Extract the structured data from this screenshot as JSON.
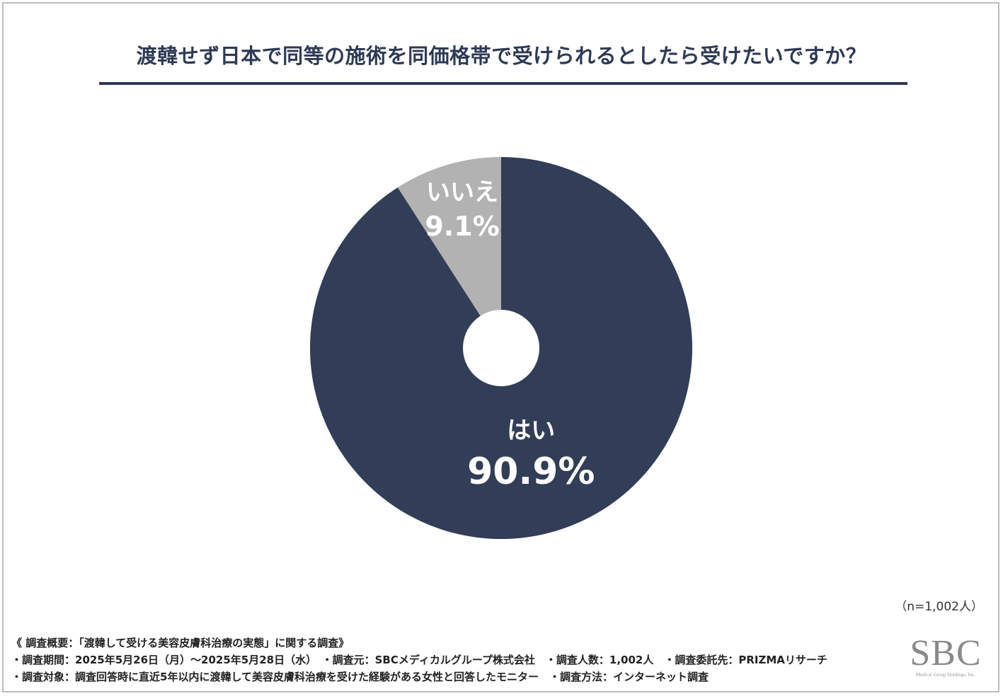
{
  "title": "渡韓せず日本で同等の施術を同価格帯で受けられるとしたら受けたいですか？",
  "sample_note": "（n=1,002人）",
  "survey": {
    "heading": "《 調査概要：「渡韓して受ける美容皮膚科治療の実態」に関する調査》",
    "line1": "・調査期間：2025年5月26日（月）～2025年5月28日（水）　・調査元：SBCメディカルグループ株式会社　・調査人数：1,002人　・調査委託先：PRIZMAリサーチ",
    "line2": "・調査対象：調査回答時に直近5年以内に渡韓して美容皮膚科治療を受けた経験がある女性と回答したモニター　・調査方法：インターネット調査"
  },
  "logo": {
    "mark": "SBC",
    "sub": "Medical Group Holdings, Inc."
  },
  "colors": {
    "yes": "#323d57",
    "no": "#b2b2b2",
    "title": "#2e3a55"
  },
  "chart_data": {
    "type": "pie",
    "categories": [
      "はい",
      "いいえ"
    ],
    "values": [
      90.9,
      9.1
    ],
    "value_labels": [
      "90.9%",
      "9.1%"
    ],
    "unit": "%",
    "legend": "none"
  }
}
